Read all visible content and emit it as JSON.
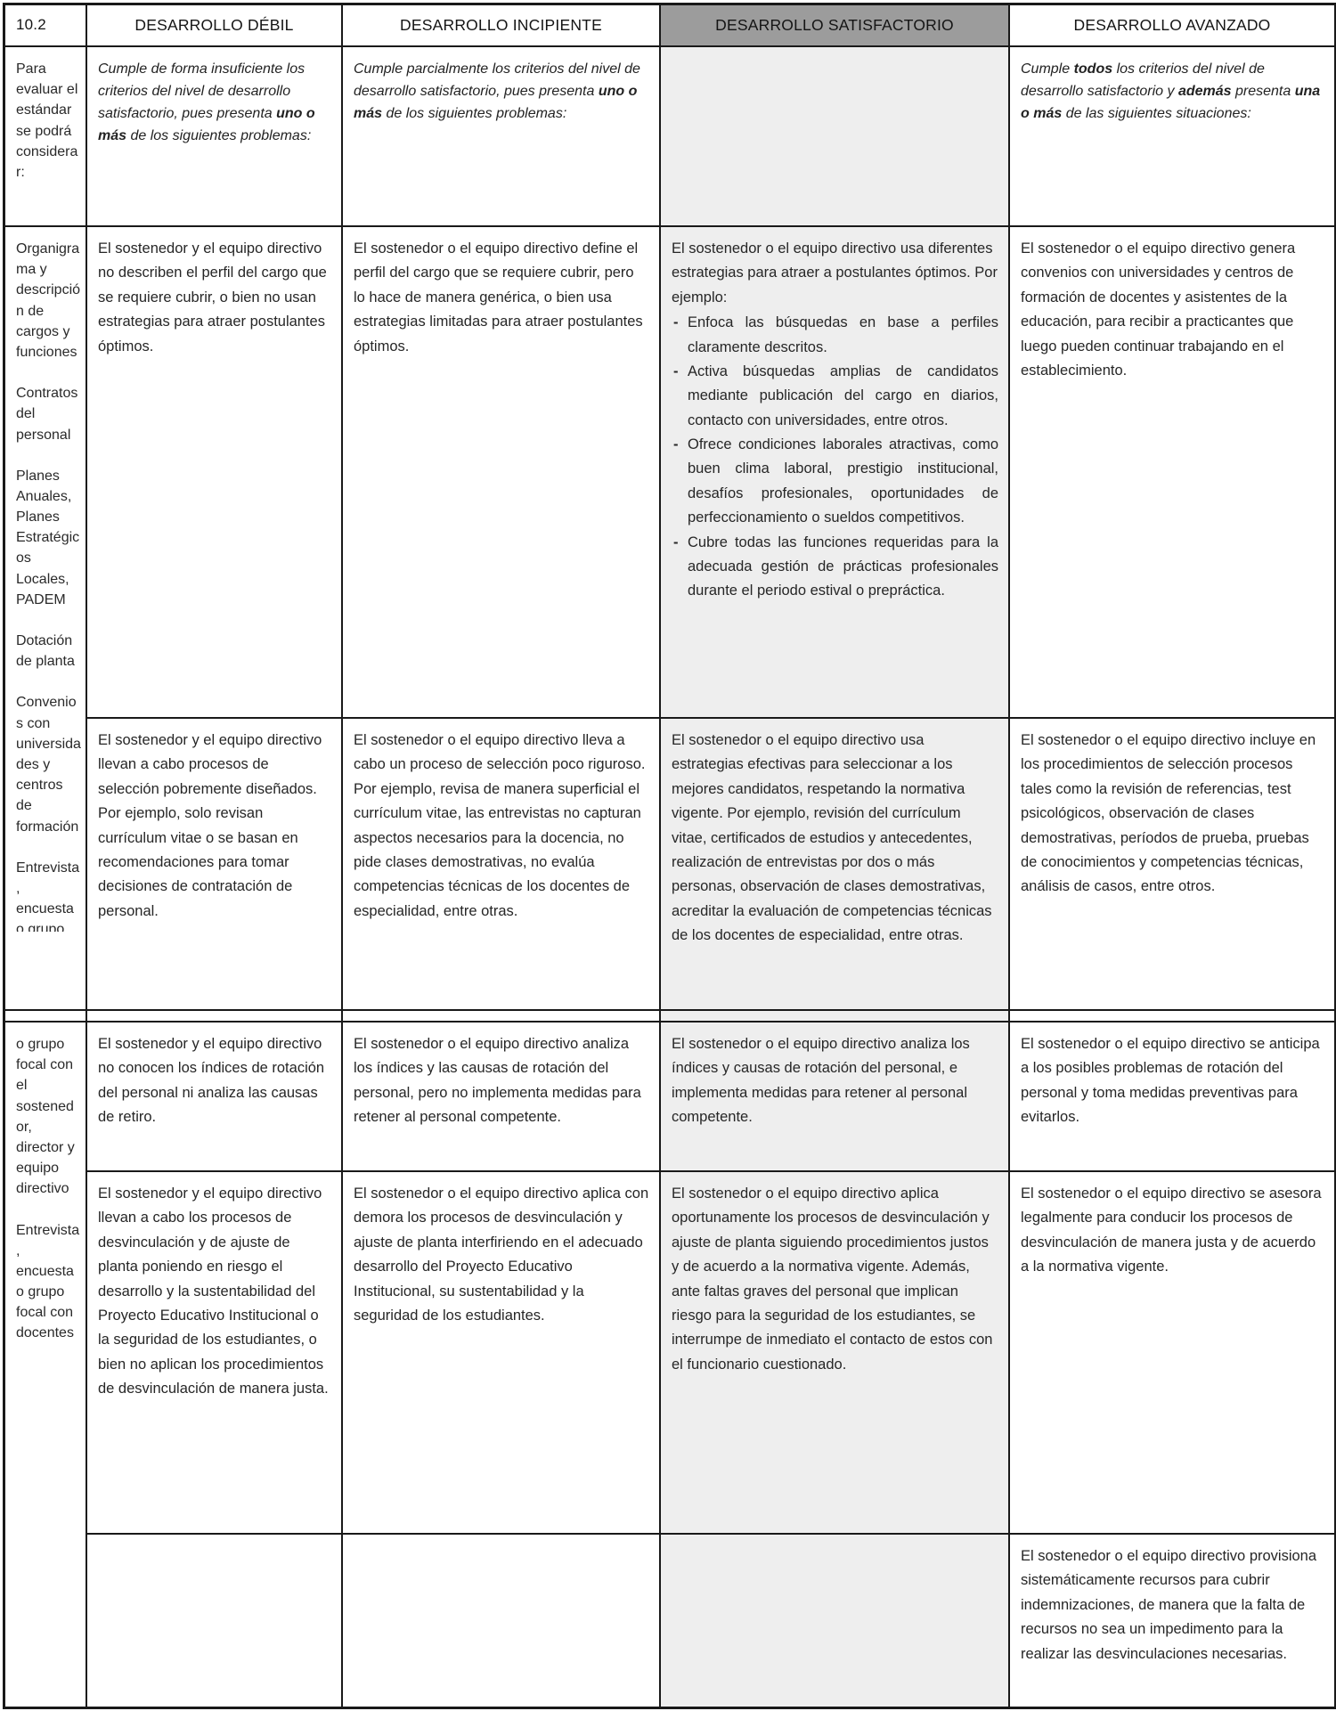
{
  "page": {
    "code": "10.2",
    "criteria_label": "Para evaluar el estándar se podrá considerar:",
    "headers": {
      "debil": "DESARROLLO DÉBIL",
      "incipiente": "DESARROLLO INCIPIENTE",
      "satisfactorio": "DESARROLLO SATISFACTORIO",
      "avanzado": "DESARROLLO AVANZADO"
    },
    "descriptors": {
      "debil": [
        "Cumple de forma insuficiente los criterios del nivel de desarrollo satisfactorio, pues presenta ",
        "uno o más",
        " de los siguientes problemas:"
      ],
      "incipiente": [
        "Cumple parcialmente los criterios del nivel de desarrollo satisfactorio, pues presenta ",
        "uno o más",
        " de los siguientes problemas:"
      ],
      "avanzado": [
        "Cumple ",
        "todos",
        " los criterios del nivel de desarrollo satisfactorio y ",
        "además",
        " presenta ",
        "una o más",
        " de las siguientes situaciones:"
      ]
    },
    "criteria_items_1": [
      "Organigrama y descripción de cargos y funciones",
      "Contratos del personal",
      "Planes Anuales, Planes Estratégicos Locales, PADEM",
      "Dotación de planta",
      "Convenios con universidades y centros de formación",
      "Entrevista, encuesta"
    ],
    "criteria_items_1_clipped": "o grupo",
    "criteria_items_2": [
      "o grupo focal con el sostenedor, director y equipo directivo",
      "Entrevista, encuesta o grupo focal con docentes"
    ],
    "rows": {
      "atraccion": {
        "debil": "El sostenedor y el equipo directivo no describen el perfil del cargo que se requiere cubrir, o bien no usan estrategias para atraer postulantes óptimos.",
        "incipiente": "El sostenedor o el equipo directivo define el perfil del cargo que se requiere cubrir, pero lo hace de manera genérica, o bien usa estrategias limitadas para atraer postulantes óptimos.",
        "satisfactorio_intro": "El sostenedor o el equipo directivo usa diferentes estrategias para atraer a postulantes óptimos. Por ejemplo:",
        "satisfactorio_bullets": [
          "Enfoca las búsquedas en base a perfiles claramente descritos.",
          "Activa búsquedas amplias de candidatos mediante publicación del cargo en diarios, contacto con universidades, entre otros.",
          "Ofrece condiciones laborales atractivas, como buen clima laboral, prestigio institucional, desafíos profesionales, oportunidades de perfeccionamiento o sueldos competitivos.",
          "Cubre todas las funciones requeridas para la adecuada gestión de prácticas profesionales durante el periodo estival o prepráctica."
        ],
        "avanzado": "El sostenedor o el equipo directivo genera convenios con universidades y centros de formación de docentes y asistentes de la educación, para recibir a practicantes que luego pueden continuar trabajando en el establecimiento."
      },
      "seleccion": {
        "debil": "El sostenedor y el equipo directivo llevan a cabo procesos de selección pobremente diseñados. Por ejemplo, solo revisan currículum vitae o se basan en recomendaciones para tomar decisiones de contratación de personal.",
        "incipiente": "El sostenedor o el equipo directivo lleva a cabo un proceso de selección poco riguroso. Por ejemplo, revisa de manera superficial el currículum vitae, las entrevistas no capturan aspectos necesarios para la docencia, no pide clases demostrativas, no evalúa competencias técnicas de los docentes de especialidad, entre otras.",
        "satisfactorio": "El sostenedor o el equipo directivo usa estrategias efectivas para seleccionar a los mejores candidatos, respetando la normativa vigente. Por ejemplo, revisión del currículum vitae, certificados de estudios y antecedentes, realización de entrevistas por dos o más personas, observación de clases demostrativas, acreditar la evaluación de competencias técnicas de los docentes de especialidad, entre otras.",
        "avanzado": "El sostenedor o el equipo directivo incluye en los procedimientos de selección procesos tales como la revisión de referencias, test psicológicos, observación de clases demostrativas, períodos de prueba, pruebas de conocimientos y competencias técnicas, análisis de casos, entre otros."
      },
      "rotacion": {
        "debil": "El sostenedor y el equipo directivo no conocen los índices de rotación del personal ni analiza las causas de retiro.",
        "incipiente": "El sostenedor o el equipo directivo analiza los índices y las causas de rotación del personal, pero no implementa medidas para retener al personal competente.",
        "satisfactorio": "El sostenedor o el equipo directivo analiza los índices y causas de rotación del personal, e implementa medidas para retener al personal competente.",
        "avanzado": "El sostenedor o el equipo directivo se anticipa a los posibles problemas de rotación del personal y toma medidas preventivas para evitarlos."
      },
      "desvinculacion": {
        "debil": "El sostenedor y el equipo directivo llevan a cabo los procesos de desvinculación y de ajuste de planta poniendo en riesgo el desarrollo y la sustentabilidad del Proyecto Educativo Institucional o la seguridad de los estudiantes, o bien no aplican los procedimientos de desvinculación de manera justa.",
        "incipiente": "El sostenedor o el equipo directivo aplica con demora los procesos de desvinculación y ajuste de planta interfiriendo en el adecuado desarrollo del Proyecto Educativo Institucional, su sustentabilidad y la seguridad de los estudiantes.",
        "satisfactorio": "El sostenedor o el equipo directivo aplica oportunamente los procesos de desvinculación y ajuste de planta siguiendo procedimientos justos y de acuerdo a la normativa vigente. Además, ante faltas graves del personal que implican riesgo para la seguridad de los estudiantes, se interrumpe de inmediato el contacto de estos con el funcionario cuestionado.",
        "avanzado": "El sostenedor o el equipo directivo se asesora legalmente para conducir los procesos de desvinculación de manera justa y de acuerdo a la normativa vigente."
      },
      "provision": {
        "avanzado": "El sostenedor o el equipo directivo provisiona sistemáticamente recursos para cubrir indemnizaciones, de manera que la falta de recursos no sea un impedimento para la realizar las desvinculaciones necesarias."
      }
    },
    "colors": {
      "header_gray": "#9c9c9c",
      "satisfactorio_bg": "#eeeeee",
      "border": "#191919"
    }
  }
}
